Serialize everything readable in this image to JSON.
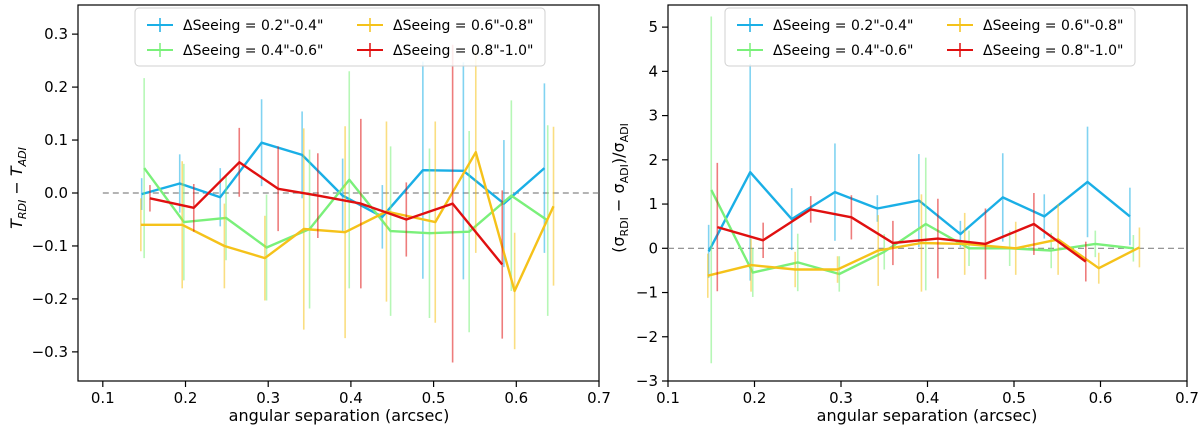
{
  "chart_data": [
    {
      "type": "line",
      "title": "",
      "xlabel": "angular separation (arcsec)",
      "ylabel": "T_RDI − T_ADI",
      "ylabel_main": "T",
      "ylabel_sub1": "RDI",
      "ylabel_mid": " − T",
      "ylabel_sub2": "ADI",
      "xlim": [
        0.07,
        0.7
      ],
      "ylim": [
        -0.355,
        0.355
      ],
      "xticks": [
        0.1,
        0.2,
        0.3,
        0.4,
        0.5,
        0.6,
        0.7
      ],
      "xtick_labels": [
        "0.1",
        "0.2",
        "0.3",
        "0.4",
        "0.5",
        "0.6",
        "0.7"
      ],
      "yticks": [
        -0.3,
        -0.2,
        -0.1,
        0.0,
        0.1,
        0.2,
        0.3
      ],
      "ytick_labels": [
        "−0.3",
        "−0.2",
        "−0.1",
        "0.0",
        "0.1",
        "0.2",
        "0.3"
      ],
      "reference_line": 0,
      "legend_position": "top",
      "series": [
        {
          "name": "ΔSeeing = 0.2\"-0.4\"",
          "color": "#1aafe6",
          "x": [
            0.147,
            0.193,
            0.242,
            0.292,
            0.341,
            0.39,
            0.438,
            0.487,
            0.536,
            0.585,
            0.634
          ],
          "y": [
            -0.002,
            0.018,
            -0.008,
            0.095,
            0.072,
            -0.005,
            -0.045,
            0.043,
            0.042,
            -0.02,
            0.047
          ],
          "err": [
            0.03,
            0.055,
            0.055,
            0.082,
            0.082,
            0.07,
            0.06,
            0.205,
            0.205,
            0.12,
            0.16
          ]
        },
        {
          "name": "ΔSeeing = 0.4\"-0.6\"",
          "color": "#7af07a",
          "x": [
            0.15,
            0.198,
            0.249,
            0.298,
            0.35,
            0.398,
            0.448,
            0.495,
            0.543,
            0.594,
            0.638
          ],
          "y": [
            0.047,
            -0.055,
            -0.047,
            -0.103,
            -0.068,
            0.025,
            -0.072,
            -0.076,
            -0.073,
            -0.005,
            -0.052
          ],
          "err": [
            0.17,
            0.11,
            0.08,
            0.1,
            0.15,
            0.205,
            0.16,
            0.16,
            0.19,
            0.18,
            0.18
          ]
        },
        {
          "name": "ΔSeeing = 0.6\"-0.8\"",
          "color": "#f5c21a",
          "x": [
            0.146,
            0.196,
            0.247,
            0.296,
            0.343,
            0.393,
            0.443,
            0.502,
            0.551,
            0.598,
            0.645
          ],
          "y": [
            -0.06,
            -0.06,
            -0.1,
            -0.123,
            -0.068,
            -0.074,
            -0.035,
            -0.055,
            0.077,
            -0.185,
            -0.025
          ],
          "err": [
            0.05,
            0.12,
            0.08,
            0.08,
            0.19,
            0.2,
            0.17,
            0.19,
            0.19,
            0.11,
            0.15
          ]
        },
        {
          "name": "ΔSeeing = 0.8\"-1.0\"",
          "color": "#e01010",
          "x": [
            0.157,
            0.21,
            0.265,
            0.312,
            0.36,
            0.412,
            0.467,
            0.523,
            0.583
          ],
          "y": [
            -0.01,
            -0.028,
            0.058,
            0.008,
            -0.005,
            -0.02,
            -0.05,
            -0.02,
            -0.135
          ],
          "err": [
            0.025,
            0.045,
            0.065,
            0.08,
            0.08,
            0.16,
            0.07,
            0.3,
            0.14
          ]
        }
      ]
    },
    {
      "type": "line",
      "title": "",
      "xlabel": "angular separation (arcsec)",
      "ylabel": "(σ_RDI − σ_ADI)/σ_ADI",
      "ylabel_main": "(σ",
      "ylabel_sub1": "RDI",
      "ylabel_mid": " − σ",
      "ylabel_sub2": "ADI",
      "ylabel_end": ")/σ",
      "ylabel_sub3": "ADI",
      "xlim": [
        0.1,
        0.7
      ],
      "ylim": [
        -3.0,
        5.5
      ],
      "xticks": [
        0.1,
        0.2,
        0.3,
        0.4,
        0.5,
        0.6,
        0.7
      ],
      "xtick_labels": [
        "0.1",
        "0.2",
        "0.3",
        "0.4",
        "0.5",
        "0.6",
        "0.7"
      ],
      "yticks": [
        -3,
        -2,
        -1,
        0,
        1,
        2,
        3,
        4,
        5
      ],
      "ytick_labels": [
        "−3",
        "−2",
        "−1",
        "0",
        "1",
        "2",
        "3",
        "4",
        "5"
      ],
      "reference_line": 0,
      "legend_position": "top",
      "series": [
        {
          "name": "ΔSeeing = 0.2\"-0.4\"",
          "color": "#1aafe6",
          "x": [
            0.147,
            0.195,
            0.243,
            0.293,
            0.342,
            0.39,
            0.438,
            0.487,
            0.535,
            0.585,
            0.634
          ],
          "y": [
            -0.07,
            1.72,
            0.66,
            1.27,
            0.9,
            1.08,
            0.32,
            1.15,
            0.72,
            1.5,
            0.72
          ],
          "err": [
            0.6,
            2.45,
            0.7,
            1.1,
            0.3,
            1.05,
            0.3,
            1.0,
            0.5,
            1.25,
            0.65
          ]
        },
        {
          "name": "ΔSeeing = 0.4\"-0.6\"",
          "color": "#7af07a",
          "x": [
            0.15,
            0.198,
            0.25,
            0.298,
            0.35,
            0.398,
            0.448,
            0.495,
            0.543,
            0.594,
            0.638
          ],
          "y": [
            1.32,
            -0.55,
            -0.32,
            -0.58,
            -0.08,
            0.55,
            0.0,
            0.0,
            -0.05,
            0.1,
            0.0
          ],
          "err": [
            3.92,
            0.55,
            0.65,
            0.4,
            0.4,
            1.5,
            0.4,
            0.4,
            0.4,
            0.3,
            0.3
          ]
        },
        {
          "name": "ΔSeeing = 0.6\"-0.8\"",
          "color": "#f5c21a",
          "x": [
            0.146,
            0.196,
            0.247,
            0.296,
            0.343,
            0.393,
            0.443,
            0.502,
            0.551,
            0.598,
            0.645
          ],
          "y": [
            -0.62,
            -0.38,
            -0.48,
            -0.48,
            -0.05,
            0.12,
            0.1,
            0.0,
            0.2,
            -0.45,
            0.02
          ],
          "err": [
            0.5,
            0.6,
            0.4,
            0.3,
            0.8,
            1.1,
            0.7,
            0.6,
            0.8,
            0.35,
            0.45
          ]
        },
        {
          "name": "ΔSeeing = 0.8\"-1.0\"",
          "color": "#e01010",
          "x": [
            0.157,
            0.21,
            0.265,
            0.312,
            0.36,
            0.412,
            0.467,
            0.523,
            0.583
          ],
          "y": [
            0.48,
            0.18,
            0.88,
            0.7,
            0.12,
            0.22,
            0.1,
            0.55,
            -0.3
          ],
          "err": [
            1.45,
            0.4,
            0.3,
            0.5,
            0.5,
            0.9,
            0.8,
            0.7,
            0.45
          ]
        }
      ]
    }
  ]
}
